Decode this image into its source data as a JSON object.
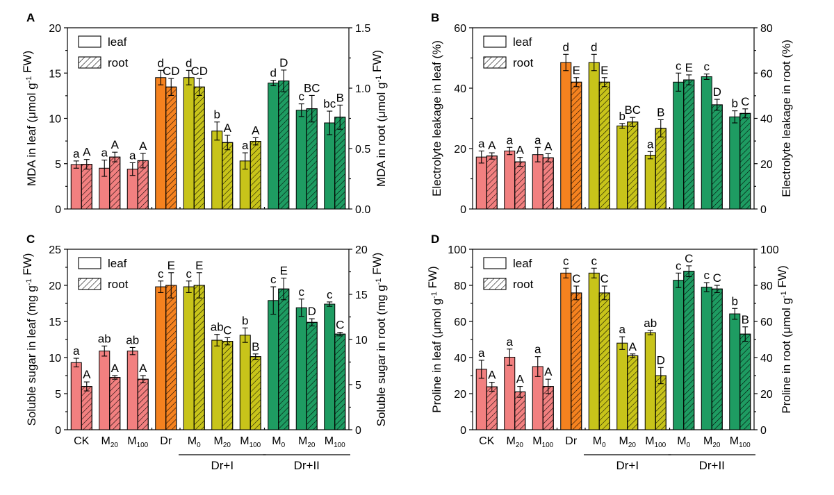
{
  "colors": {
    "ck_group": "#f28080",
    "dr": "#f5821f",
    "dr_plus_I": "#c8c41a",
    "dr_plus_II": "#1e9c62",
    "axis": "#000000"
  },
  "legend": {
    "leaf_label": "leaf",
    "root_label": "root"
  },
  "shared_x": {
    "categories": [
      {
        "main": "CK",
        "sub": ""
      },
      {
        "main": "M",
        "sub": "20"
      },
      {
        "main": "M",
        "sub": "100"
      },
      {
        "main": "Dr",
        "sub": ""
      },
      {
        "main": "M",
        "sub": "0"
      },
      {
        "main": "M",
        "sub": "20"
      },
      {
        "main": "M",
        "sub": "100"
      },
      {
        "main": "M",
        "sub": "0"
      },
      {
        "main": "M",
        "sub": "20"
      },
      {
        "main": "M",
        "sub": "100"
      }
    ],
    "color_groups": [
      "ck_group",
      "ck_group",
      "ck_group",
      "dr",
      "dr_plus_I",
      "dr_plus_I",
      "dr_plus_I",
      "dr_plus_II",
      "dr_plus_II",
      "dr_plus_II"
    ],
    "group_labels": [
      {
        "text": "Dr+I",
        "from": 4,
        "to": 6
      },
      {
        "text": "Dr+II",
        "from": 7,
        "to": 9
      }
    ]
  },
  "chart_data": [
    {
      "panel": "A",
      "type": "bar",
      "ylabel_left": {
        "parts": [
          [
            "MDA in leaf (μmol g",
            false
          ],
          [
            "-1",
            true
          ],
          [
            " FW)",
            false
          ]
        ]
      },
      "ylabel_right": {
        "parts": [
          [
            "MDA in root (μmol g",
            false
          ],
          [
            "-1",
            true
          ],
          [
            " FW)",
            false
          ]
        ]
      },
      "left_ylim": [
        0,
        20
      ],
      "left_ticks": [
        "0",
        "5",
        "10",
        "15",
        "20"
      ],
      "right_ylim": [
        0,
        1.5
      ],
      "right_ticks": [
        "0.0",
        "0.5",
        "1.0",
        "1.5"
      ],
      "series": [
        {
          "name": "leaf",
          "axis": "left",
          "values": [
            4.9,
            4.5,
            4.4,
            14.5,
            14.5,
            8.6,
            5.3,
            13.9,
            10.9,
            9.5
          ],
          "errors": [
            0.4,
            0.9,
            0.7,
            0.8,
            0.8,
            1.0,
            0.9,
            0.3,
            0.7,
            1.3
          ],
          "letters": [
            "a",
            "a",
            "a",
            "d",
            "d",
            "b",
            "a",
            "d",
            "c",
            "bc"
          ]
        },
        {
          "name": "root",
          "axis": "right",
          "values": [
            0.37,
            0.43,
            0.4,
            1.01,
            1.01,
            0.55,
            0.56,
            1.06,
            0.83,
            0.76
          ],
          "errors": [
            0.04,
            0.04,
            0.06,
            0.07,
            0.07,
            0.06,
            0.03,
            0.09,
            0.11,
            0.1
          ],
          "letters": [
            "A",
            "A",
            "A",
            "CD",
            "CD",
            "A",
            "A",
            "D",
            "BC",
            "B"
          ]
        }
      ]
    },
    {
      "panel": "B",
      "type": "bar",
      "ylabel_left": {
        "parts": [
          [
            "Electrolyte leakage in leaf (%)",
            false
          ]
        ]
      },
      "ylabel_right": {
        "parts": [
          [
            "Electrolyte leakage in root (%)",
            false
          ]
        ]
      },
      "left_ylim": [
        0,
        60
      ],
      "left_ticks": [
        "0",
        "20",
        "40",
        "60"
      ],
      "right_ylim": [
        0,
        80
      ],
      "right_ticks": [
        "0",
        "20",
        "40",
        "60",
        "80"
      ],
      "series": [
        {
          "name": "leaf",
          "axis": "left",
          "values": [
            17.2,
            19.2,
            18.0,
            48.5,
            48.5,
            27.5,
            17.8,
            42.0,
            43.8,
            30.5
          ],
          "errors": [
            2.0,
            1.2,
            2.4,
            2.7,
            2.7,
            0.8,
            1.2,
            3.0,
            0.9,
            2.0
          ],
          "letters": [
            "a",
            "a",
            "a",
            "d",
            "d",
            "b",
            "a",
            "c",
            "c",
            "b"
          ]
        },
        {
          "name": "root",
          "axis": "right",
          "values": [
            23.4,
            20.8,
            22.6,
            56.0,
            56.0,
            38.4,
            35.6,
            57.0,
            46.0,
            42.2
          ],
          "errors": [
            1.4,
            2.0,
            1.8,
            2.0,
            2.0,
            2.0,
            3.8,
            2.2,
            2.4,
            2.0
          ],
          "letters": [
            "A",
            "A",
            "A",
            "E",
            "E",
            "BC",
            "B",
            "E",
            "D",
            "C"
          ]
        }
      ]
    },
    {
      "panel": "C",
      "type": "bar",
      "ylabel_left": {
        "parts": [
          [
            "Soluble sugar in leaf (mg g",
            false
          ],
          [
            "-1",
            true
          ],
          [
            " FW)",
            false
          ]
        ]
      },
      "ylabel_right": {
        "parts": [
          [
            "Soluble sugar in root (mg g",
            false
          ],
          [
            "-1",
            true
          ],
          [
            " FW)",
            false
          ]
        ]
      },
      "left_ylim": [
        0,
        25
      ],
      "left_ticks": [
        "0",
        "5",
        "10",
        "15",
        "20",
        "25"
      ],
      "right_ylim": [
        0,
        20
      ],
      "right_ticks": [
        "0",
        "5",
        "10",
        "15",
        "20"
      ],
      "series": [
        {
          "name": "leaf",
          "axis": "left",
          "values": [
            9.3,
            10.9,
            10.9,
            19.8,
            19.8,
            12.4,
            13.1,
            17.9,
            16.9,
            17.4
          ],
          "errors": [
            0.6,
            0.7,
            0.5,
            0.8,
            0.8,
            0.8,
            1.0,
            1.9,
            1.2,
            0.3
          ],
          "letters": [
            "a",
            "ab",
            "ab",
            "c",
            "c",
            "ab",
            "b",
            "c",
            "c",
            "c"
          ]
        },
        {
          "name": "root",
          "axis": "right",
          "values": [
            4.8,
            5.8,
            5.6,
            16.0,
            16.0,
            9.8,
            8.1,
            15.6,
            11.9,
            10.6
          ],
          "errors": [
            0.5,
            0.2,
            0.4,
            1.4,
            1.4,
            0.4,
            0.3,
            1.2,
            0.4,
            0.2
          ],
          "letters": [
            "A",
            "A",
            "A",
            "E",
            "E",
            "C",
            "B",
            "E",
            "D",
            "C"
          ]
        }
      ]
    },
    {
      "panel": "D",
      "type": "bar",
      "ylabel_left": {
        "parts": [
          [
            "Proline in leaf (μmol g",
            false
          ],
          [
            "-1",
            true
          ],
          [
            " FW)",
            false
          ]
        ]
      },
      "ylabel_right": {
        "parts": [
          [
            "Proline in root (μmol g",
            false
          ],
          [
            "-1",
            true
          ],
          [
            " FW)",
            false
          ]
        ]
      },
      "left_ylim": [
        0,
        100
      ],
      "left_ticks": [
        "0",
        "20",
        "40",
        "60",
        "80",
        "100"
      ],
      "right_ylim": [
        0,
        100
      ],
      "right_ticks": [
        "0",
        "20",
        "40",
        "60",
        "80",
        "100"
      ],
      "series": [
        {
          "name": "leaf",
          "axis": "left",
          "values": [
            33.5,
            40.2,
            35.0,
            86.8,
            86.8,
            48.0,
            53.8,
            82.8,
            79.0,
            64.2
          ],
          "errors": [
            5.0,
            4.5,
            5.5,
            2.7,
            2.7,
            3.5,
            1.2,
            4.0,
            2.5,
            3.0
          ],
          "letters": [
            "a",
            "a",
            "a",
            "c",
            "c",
            "a",
            "ab",
            "c",
            "c",
            "b"
          ]
        },
        {
          "name": "root",
          "axis": "right",
          "values": [
            23.8,
            21.0,
            24.0,
            75.8,
            75.8,
            41.0,
            30.0,
            87.8,
            78.0,
            53.0
          ],
          "errors": [
            2.5,
            3.0,
            4.0,
            3.8,
            3.8,
            1.0,
            4.5,
            3.0,
            2.0,
            4.0
          ],
          "letters": [
            "A",
            "A",
            "A",
            "C",
            "C",
            "A",
            "D",
            "C",
            "C",
            "B"
          ]
        }
      ]
    }
  ]
}
